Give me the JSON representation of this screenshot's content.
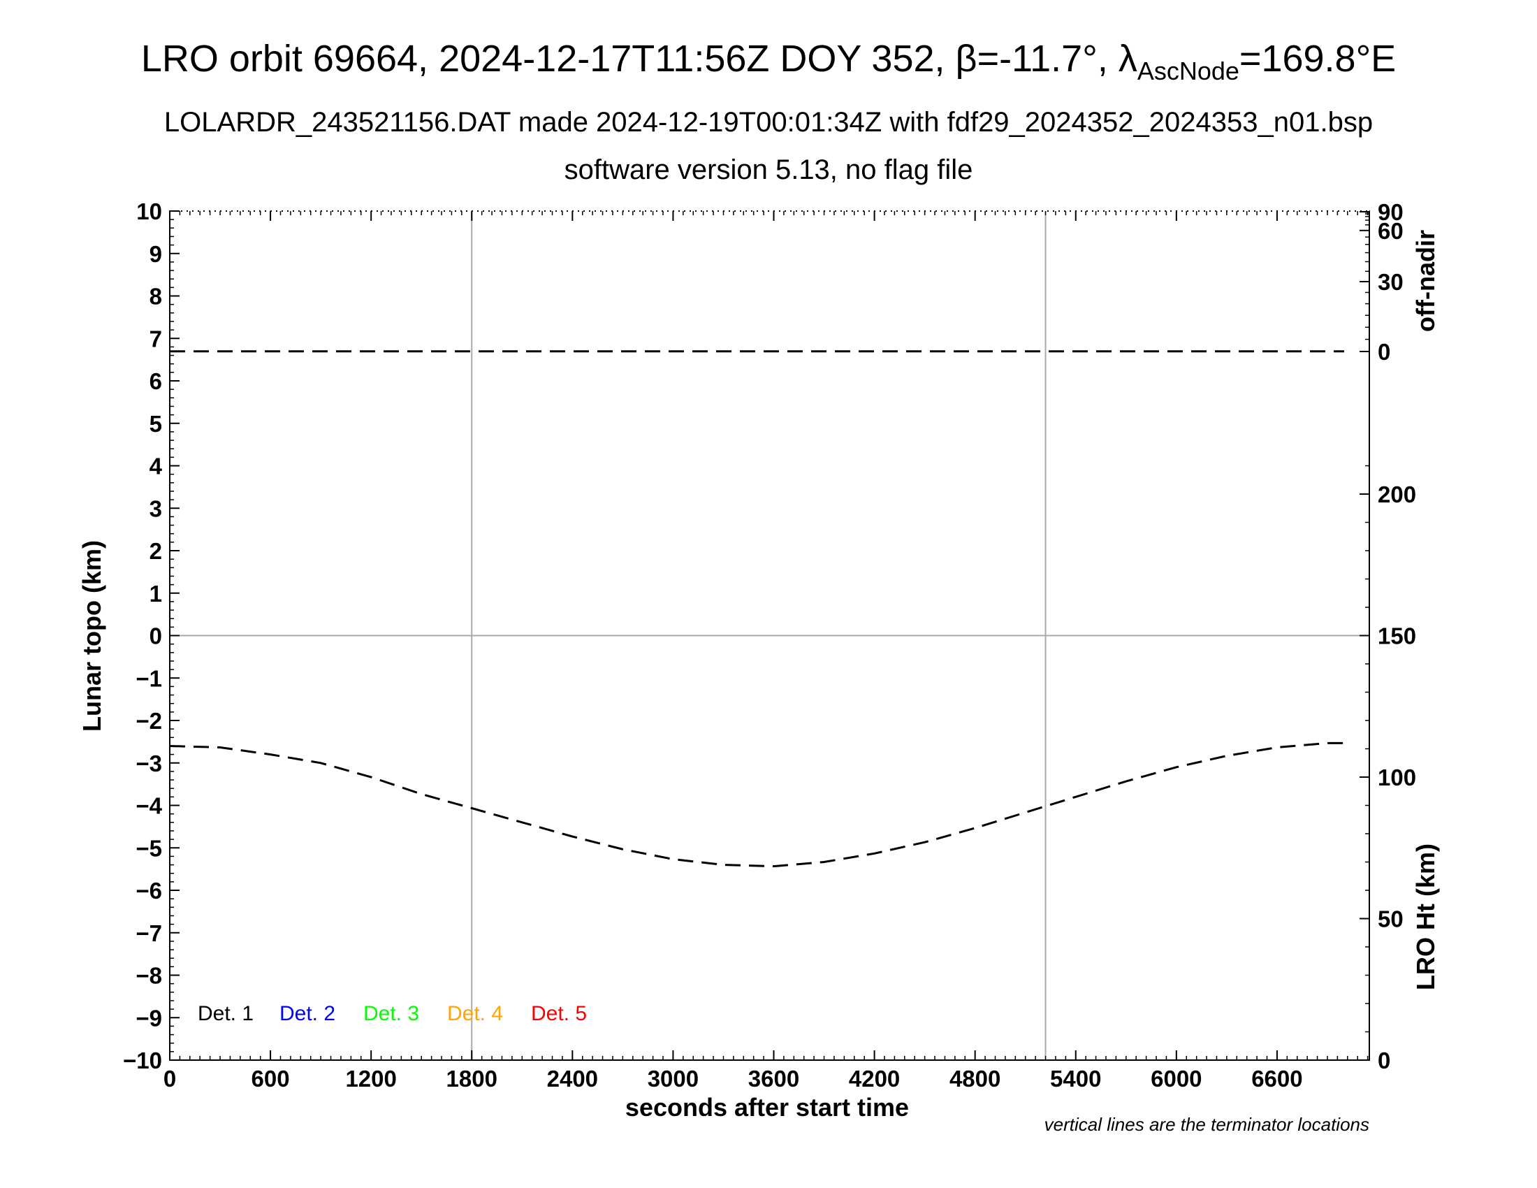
{
  "title": {
    "pre": "LRO orbit 69664, 2024-12-17T11:56Z DOY 352, ",
    "beta_sym": "β",
    "beta_val": "=-11.7°, ",
    "lambda_sym": "λ",
    "lambda_sub": "AscNode",
    "lambda_val": "=169.8°E"
  },
  "subtitle1": "LOLARDR_243521156.DAT made 2024-12-19T00:01:34Z with fdf29_2024352_2024353_n01.bsp",
  "subtitle2": "software version 5.13, no flag file",
  "footnote": "vertical lines are the terminator locations",
  "chart_data": {
    "type": "line",
    "xlabel": "seconds after start time",
    "xlim": [
      0,
      7150
    ],
    "xticks": [
      "0",
      "600",
      "1200",
      "1800",
      "2400",
      "3000",
      "3600",
      "4200",
      "4800",
      "5400",
      "6000",
      "6600"
    ],
    "ylabel_left": "Lunar topo (km)",
    "ylim_left": [
      -10,
      10
    ],
    "yticks_left": [
      "10",
      "9",
      "8",
      "7",
      "6",
      "5",
      "4",
      "3",
      "2",
      "1",
      "0",
      "−1",
      "−2",
      "−3",
      "−4",
      "−5",
      "−6",
      "−7",
      "−8",
      "−9",
      "−10"
    ],
    "ylabel_right_top": "off-nadir",
    "yticks_right_top": [
      "90",
      "60",
      "30",
      "0"
    ],
    "ylabel_right_bottom": "LRO Ht (km)",
    "ylim_right_bottom": [
      0,
      300
    ],
    "yticks_right_bottom": [
      "200",
      "150",
      "100",
      "50",
      "0"
    ],
    "terminators_x": [
      1800,
      5220
    ],
    "legend": [
      {
        "label": "Det. 1",
        "color": "#000000"
      },
      {
        "label": "Det. 2",
        "color": "#0000ff"
      },
      {
        "label": "Det. 3",
        "color": "#00ff00"
      },
      {
        "label": "Det. 4",
        "color": "#ffa500"
      },
      {
        "label": "Det. 5",
        "color": "#ff0000"
      }
    ],
    "series": [
      {
        "name": "off-nadir",
        "color": "#000000",
        "style": "dashed",
        "points": [
          [
            0,
            0.1
          ],
          [
            1200,
            0.1
          ],
          [
            2400,
            0.1
          ],
          [
            3600,
            0.1
          ],
          [
            4800,
            0.1
          ],
          [
            6000,
            0.1
          ],
          [
            7000,
            0.1
          ]
        ]
      },
      {
        "name": "LRO Ht",
        "color": "#000000",
        "style": "dashed",
        "points": [
          [
            0,
            111
          ],
          [
            300,
            110.5
          ],
          [
            600,
            108
          ],
          [
            900,
            105
          ],
          [
            1200,
            100
          ],
          [
            1500,
            94
          ],
          [
            1800,
            89
          ],
          [
            2100,
            84
          ],
          [
            2400,
            79
          ],
          [
            2700,
            74.5
          ],
          [
            3000,
            71
          ],
          [
            3300,
            69
          ],
          [
            3600,
            68.5
          ],
          [
            3900,
            70
          ],
          [
            4200,
            73
          ],
          [
            4500,
            77
          ],
          [
            4800,
            82
          ],
          [
            5100,
            87.5
          ],
          [
            5400,
            93
          ],
          [
            5700,
            98.5
          ],
          [
            6000,
            103.5
          ],
          [
            6300,
            107.5
          ],
          [
            6600,
            110.5
          ],
          [
            6900,
            112
          ],
          [
            7000,
            112
          ]
        ]
      }
    ]
  }
}
